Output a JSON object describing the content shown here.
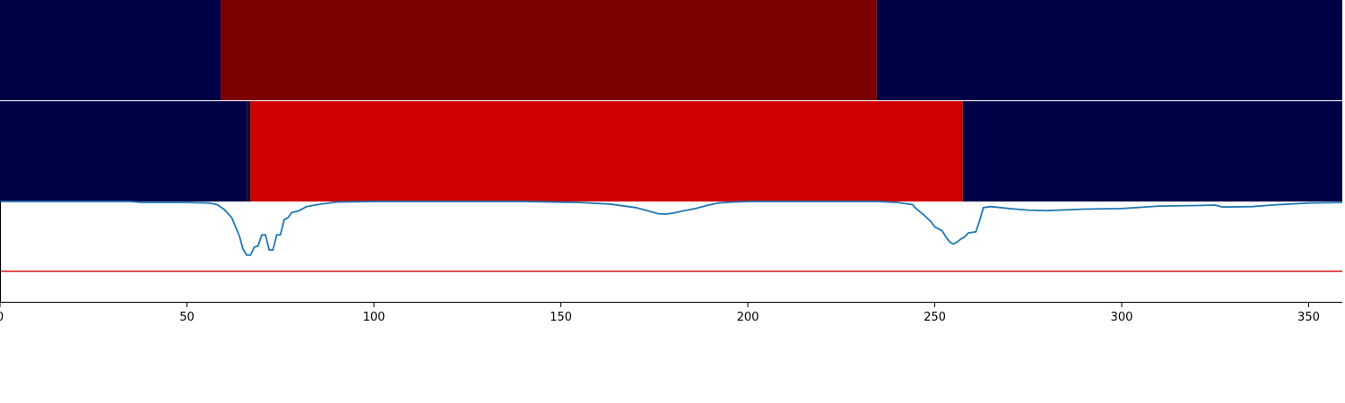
{
  "chart_data": [
    {
      "type": "heatmap",
      "name": "segments-row-1",
      "xlim": [
        0,
        359
      ],
      "segments": [
        {
          "start": 0,
          "end": 59,
          "color": "#000046"
        },
        {
          "start": 59,
          "end": 234.5,
          "color": "#7c0000"
        },
        {
          "start": 234.5,
          "end": 359,
          "color": "#000046"
        }
      ]
    },
    {
      "type": "heatmap",
      "name": "segments-row-2",
      "xlim": [
        0,
        359
      ],
      "segments": [
        {
          "start": 0,
          "end": 66,
          "color": "#000046"
        },
        {
          "start": 66,
          "end": 67,
          "color": "#1a0020"
        },
        {
          "start": 67,
          "end": 257.5,
          "color": "#d00000"
        },
        {
          "start": 257.5,
          "end": 359,
          "color": "#000046"
        }
      ]
    },
    {
      "type": "line",
      "xlim": [
        0,
        359
      ],
      "ylim": [
        0,
        1
      ],
      "xticks": [
        0,
        50,
        100,
        150,
        200,
        250,
        300,
        350
      ],
      "grid": false,
      "threshold": {
        "y": 0.31,
        "color": "#d62728"
      },
      "series": [
        {
          "color": "#1f77b4",
          "points": [
            [
              0,
              1.0
            ],
            [
              20,
              1.0
            ],
            [
              35,
              1.0
            ],
            [
              38,
              0.99
            ],
            [
              40,
              0.99
            ],
            [
              50,
              0.99
            ],
            [
              56,
              0.985
            ],
            [
              58,
              0.97
            ],
            [
              60,
              0.92
            ],
            [
              62,
              0.84
            ],
            [
              64,
              0.66
            ],
            [
              65,
              0.53
            ],
            [
              66,
              0.47
            ],
            [
              67,
              0.47
            ],
            [
              68,
              0.55
            ],
            [
              69,
              0.56
            ],
            [
              70,
              0.67
            ],
            [
              71,
              0.67
            ],
            [
              72,
              0.52
            ],
            [
              73,
              0.52
            ],
            [
              74,
              0.67
            ],
            [
              75,
              0.67
            ],
            [
              76,
              0.82
            ],
            [
              77,
              0.84
            ],
            [
              78,
              0.89
            ],
            [
              80,
              0.91
            ],
            [
              82,
              0.95
            ],
            [
              85,
              0.97
            ],
            [
              90,
              0.995
            ],
            [
              100,
              1.0
            ],
            [
              140,
              1.0
            ],
            [
              155,
              0.99
            ],
            [
              163,
              0.975
            ],
            [
              170,
              0.94
            ],
            [
              174,
              0.9
            ],
            [
              176,
              0.88
            ],
            [
              178,
              0.875
            ],
            [
              180,
              0.885
            ],
            [
              183,
              0.91
            ],
            [
              186,
              0.93
            ],
            [
              189,
              0.96
            ],
            [
              192,
              0.985
            ],
            [
              196,
              0.995
            ],
            [
              200,
              1.0
            ],
            [
              235,
              1.0
            ],
            [
              240,
              0.99
            ],
            [
              244,
              0.97
            ],
            [
              245,
              0.93
            ],
            [
              247,
              0.87
            ],
            [
              249,
              0.8
            ],
            [
              250,
              0.75
            ],
            [
              252,
              0.71
            ],
            [
              253,
              0.65
            ],
            [
              254,
              0.6
            ],
            [
              255,
              0.58
            ],
            [
              256,
              0.6
            ],
            [
              257,
              0.63
            ],
            [
              258,
              0.65
            ],
            [
              259,
              0.69
            ],
            [
              261,
              0.7
            ],
            [
              262,
              0.81
            ],
            [
              263,
              0.94
            ],
            [
              265,
              0.95
            ],
            [
              270,
              0.93
            ],
            [
              275,
              0.915
            ],
            [
              280,
              0.91
            ],
            [
              290,
              0.925
            ],
            [
              300,
              0.93
            ],
            [
              310,
              0.955
            ],
            [
              320,
              0.96
            ],
            [
              325,
              0.965
            ],
            [
              327,
              0.945
            ],
            [
              335,
              0.95
            ],
            [
              340,
              0.965
            ],
            [
              345,
              0.975
            ],
            [
              350,
              0.985
            ],
            [
              359,
              0.99
            ]
          ]
        }
      ]
    }
  ]
}
